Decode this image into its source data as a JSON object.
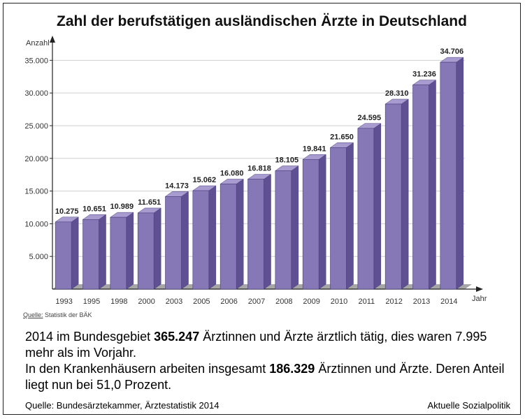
{
  "chart_data": {
    "type": "bar",
    "title": "Zahl der berufstätigen ausländischen Ärzte in Deutschland",
    "xlabel": "Jahr",
    "ylabel": "Anzahl",
    "ylim": [
      0,
      36000
    ],
    "yticks": [
      {
        "value": 5000,
        "label": "5.000"
      },
      {
        "value": 10000,
        "label": "10.000"
      },
      {
        "value": 15000,
        "label": "15.000"
      },
      {
        "value": 20000,
        "label": "20.000"
      },
      {
        "value": 25000,
        "label": "25.000"
      },
      {
        "value": 30000,
        "label": "30.000"
      },
      {
        "value": 35000,
        "label": "35.000"
      }
    ],
    "categories": [
      "1993",
      "1995",
      "1998",
      "2000",
      "2003",
      "2005",
      "2006",
      "2007",
      "2008",
      "2009",
      "2010",
      "2011",
      "2012",
      "2013",
      "2014"
    ],
    "values": [
      10275,
      10651,
      10989,
      11651,
      14173,
      15062,
      16080,
      16818,
      18105,
      19841,
      21650,
      24595,
      28310,
      31236,
      34706
    ],
    "value_labels": [
      "10.275",
      "10.651",
      "10.989",
      "11.651",
      "14.173",
      "15.062",
      "16.080",
      "16.818",
      "18.105",
      "19.841",
      "21.650",
      "24.595",
      "28.310",
      "31.236",
      "34.706"
    ],
    "grid": true,
    "colors": {
      "bar_front": "#8677b6",
      "bar_side": "#5f5094",
      "bar_top": "#a79bd0",
      "floor": "#a6a6a6",
      "grid": "#cfcfcf",
      "axis": "#222222"
    }
  },
  "source_small": {
    "prefix": "Quelle:",
    "text": " Statistik der BÄK"
  },
  "description": {
    "line1_pre": "2014 im Bundesgebiet ",
    "line1_bold": "365.247",
    "line1_post": " Ärztinnen und Ärzte ärztlich tätig, dies waren 7.995 mehr als im Vorjahr.",
    "line2_pre": "In den Krankenhäusern arbeiten insgesamt ",
    "line2_bold": "186.329",
    "line2_post": " Ärztinnen und Ärzte. Deren Anteil liegt nun bei 51,0 Prozent."
  },
  "footer": {
    "source": "Quelle: Bundesärztekammer, Ärztestatistik 2014",
    "brand": "Aktuelle Sozialpolitik"
  }
}
